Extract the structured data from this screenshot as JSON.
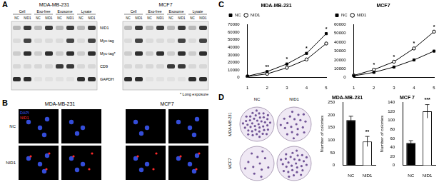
{
  "figure": {
    "A": {
      "label": "A",
      "cell_lines": [
        "MDA-MB-231",
        "MCF7"
      ],
      "fractions": [
        "Cell",
        "Exo-free",
        "Exosome",
        "Lysate"
      ],
      "lanes": [
        "NC",
        "NID1"
      ],
      "blots": [
        "NID1",
        "Myc-tag",
        "Myc-tag*",
        "CD9",
        "GAPDH"
      ],
      "note": "* Long exposure"
    },
    "B": {
      "label": "B",
      "cell_lines": [
        "MDA-MB-231",
        "MCF7"
      ],
      "rows": [
        "NC",
        "NID1"
      ],
      "stains": [
        {
          "name": "DAPI",
          "color": "#3d5bff"
        },
        {
          "name": "NID1",
          "color": "#ff2a2a"
        }
      ]
    },
    "C": {
      "label": "C"
    },
    "D": {
      "label": "D",
      "rows": [
        "MDA-MB-231",
        "MCF7"
      ],
      "columns": [
        "NC",
        "NID1"
      ]
    }
  },
  "chart_data": [
    {
      "type": "line",
      "title": "MDA-MB-231",
      "categories": [
        "1",
        "2",
        "3",
        "4",
        "5"
      ],
      "series": [
        {
          "name": "NC",
          "color": "#000000",
          "marker": "square",
          "values": [
            2000,
            8000,
            18000,
            32000,
            58000
          ]
        },
        {
          "name": "NID1",
          "color": "#000000",
          "marker": "open_circle",
          "values": [
            1500,
            5000,
            13000,
            24000,
            45000
          ]
        }
      ],
      "ylim": [
        0,
        70000
      ],
      "yticks": [
        0,
        10000,
        20000,
        30000,
        40000,
        50000,
        60000,
        70000
      ],
      "grid": false,
      "legend": "top-left",
      "annotations": [
        {
          "x": "2",
          "text": "**"
        },
        {
          "x": "3",
          "text": "*"
        },
        {
          "x": "4",
          "text": "*"
        },
        {
          "x": "5",
          "text": "*"
        }
      ]
    },
    {
      "type": "line",
      "title": "MCF7",
      "categories": [
        "1",
        "2",
        "3",
        "4",
        "5"
      ],
      "series": [
        {
          "name": "NC",
          "color": "#000000",
          "marker": "square",
          "values": [
            2000,
            6000,
            12000,
            20000,
            30000
          ]
        },
        {
          "name": "NID1",
          "color": "#000000",
          "marker": "open_circle",
          "values": [
            2500,
            9000,
            18000,
            33000,
            52000
          ]
        }
      ],
      "ylim": [
        0,
        60000
      ],
      "yticks": [
        0,
        10000,
        20000,
        30000,
        40000,
        50000,
        60000
      ],
      "grid": false,
      "legend": "top-left",
      "annotations": [
        {
          "x": "2",
          "text": "*"
        },
        {
          "x": "3",
          "text": "*"
        },
        {
          "x": "4",
          "text": "*"
        },
        {
          "x": "5",
          "text": "*"
        }
      ]
    },
    {
      "type": "bar",
      "title": "MDA-MB-231",
      "y_label": "Number of colonies",
      "categories": [
        "NC",
        "NID1"
      ],
      "values": [
        180,
        95
      ],
      "errors": [
        15,
        20
      ],
      "colors": [
        "#000000",
        "#ffffff"
      ],
      "ylim": [
        0,
        250
      ],
      "yticks": [
        0,
        50,
        100,
        150,
        200,
        250
      ],
      "grid": false,
      "annotations": [
        {
          "x": "NID1",
          "text": "**"
        }
      ]
    },
    {
      "type": "bar",
      "title": "MCF 7",
      "y_label": "Number of colonies",
      "categories": [
        "NC",
        "NID1"
      ],
      "values": [
        50,
        120
      ],
      "errors": [
        5,
        15
      ],
      "colors": [
        "#000000",
        "#ffffff"
      ],
      "ylim": [
        0,
        140
      ],
      "yticks": [
        0,
        20,
        40,
        60,
        80,
        100,
        120,
        140
      ],
      "grid": false,
      "annotations": [
        {
          "x": "NID1",
          "text": "***"
        }
      ]
    }
  ]
}
